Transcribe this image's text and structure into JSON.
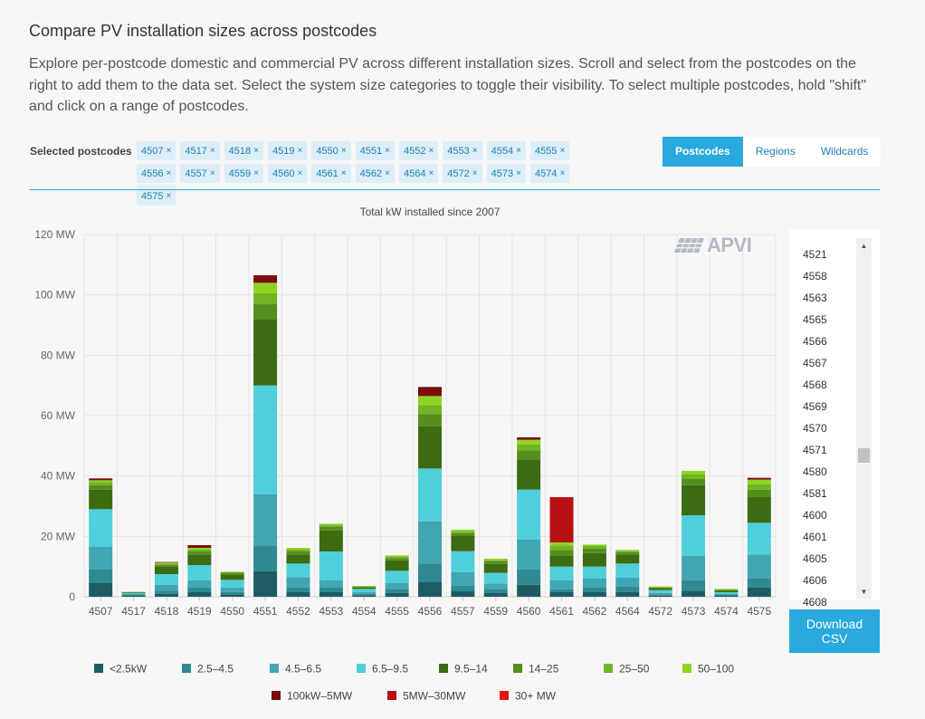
{
  "header": {
    "title": "Compare PV installation sizes across postcodes",
    "description": "Explore per-postcode domestic and commercial PV across different installation sizes. Scroll and select from the postcodes on the right to add them to the data set. Select the system size categories to toggle their visibility. To select multiple postcodes, hold \"shift\" and click on a range of postcodes."
  },
  "selected": {
    "label": "Selected postcodes",
    "remove_glyph": "×",
    "tags": [
      "4507",
      "4517",
      "4518",
      "4519",
      "4550",
      "4551",
      "4552",
      "4553",
      "4554",
      "4555",
      "4556",
      "4557",
      "4559",
      "4560",
      "4561",
      "4562",
      "4564",
      "4572",
      "4573",
      "4574",
      "4575"
    ]
  },
  "tabs": [
    {
      "label": "Postcodes",
      "active": true
    },
    {
      "label": "Regions",
      "active": false
    },
    {
      "label": "Wildcards",
      "active": false
    }
  ],
  "postcode_list": [
    "4521",
    "4558",
    "4563",
    "4565",
    "4566",
    "4567",
    "4568",
    "4569",
    "4570",
    "4571",
    "4580",
    "4581",
    "4600",
    "4601",
    "4605",
    "4606",
    "4608"
  ],
  "download_button": {
    "line1": "Download",
    "line2": "CSV"
  },
  "logo": {
    "text": "APVI",
    "color": "#b4bac4"
  },
  "icons": {
    "scroll_up": "▲",
    "scroll_down": "▼"
  },
  "chart_data": {
    "type": "bar",
    "stacked": true,
    "title": "Total kW installed since 2007",
    "xlabel": "",
    "ylabel": "",
    "ylim": [
      0,
      120
    ],
    "yticks": [
      0,
      20,
      40,
      60,
      80,
      100,
      120
    ],
    "ytick_labels": [
      "0",
      "20 MW",
      "40 MW",
      "60 MW",
      "80 MW",
      "100 MW",
      "120 MW"
    ],
    "grid": true,
    "legend_position": "bottom",
    "categories": [
      "4507",
      "4517",
      "4518",
      "4519",
      "4550",
      "4551",
      "4552",
      "4553",
      "4554",
      "4555",
      "4556",
      "4557",
      "4559",
      "4560",
      "4561",
      "4562",
      "4564",
      "4572",
      "4573",
      "4574",
      "4575"
    ],
    "series": [
      {
        "name": "<2.5kW",
        "color": "#1d5c63",
        "values": [
          4.5,
          0.3,
          1.0,
          1.5,
          0.8,
          8.5,
          1.5,
          1.5,
          0.5,
          1.3,
          5.0,
          1.8,
          1.2,
          4.0,
          1.5,
          1.5,
          1.5,
          0.4,
          2.0,
          0.3,
          3.0
        ]
      },
      {
        "name": "2.5–4.5",
        "color": "#2f8a92",
        "values": [
          4.5,
          0.3,
          1.0,
          1.5,
          0.8,
          8.5,
          1.5,
          1.5,
          0.5,
          1.3,
          6.0,
          1.8,
          1.2,
          5.0,
          1.0,
          1.5,
          1.8,
          0.4,
          3.5,
          0.3,
          3.0
        ]
      },
      {
        "name": "4.5–6.5",
        "color": "#41a6b1",
        "values": [
          7.5,
          0.3,
          2.0,
          2.5,
          1.4,
          17.0,
          3.5,
          2.5,
          0.6,
          2.0,
          14.0,
          4.5,
          2.0,
          10.0,
          3.0,
          3.0,
          3.0,
          0.5,
          8.0,
          0.4,
          8.0
        ]
      },
      {
        "name": "6.5–9.5",
        "color": "#4ecfdb",
        "values": [
          12.5,
          0.3,
          3.5,
          5.0,
          2.6,
          36.0,
          4.5,
          9.5,
          1.0,
          4.0,
          17.5,
          7.0,
          3.5,
          16.5,
          4.5,
          4.0,
          4.7,
          0.9,
          13.5,
          0.5,
          10.5
        ]
      },
      {
        "name": "9.5–14",
        "color": "#3d6b12",
        "values": [
          6.5,
          0.2,
          2.5,
          3.5,
          1.8,
          22.0,
          3.0,
          7.0,
          0.5,
          3.5,
          14.0,
          5.0,
          3.0,
          10.0,
          3.5,
          4.5,
          3.0,
          0.5,
          10.0,
          0.5,
          8.5
        ]
      },
      {
        "name": "14–25",
        "color": "#558e1d",
        "values": [
          1.5,
          0.1,
          0.6,
          1.0,
          0.4,
          5.0,
          1.0,
          1.2,
          0.2,
          0.7,
          4.0,
          1.0,
          0.8,
          3.0,
          2.0,
          1.5,
          0.8,
          0.3,
          2.0,
          0.3,
          2.5
        ]
      },
      {
        "name": "25–50",
        "color": "#6fb524",
        "values": [
          1.0,
          0.1,
          0.4,
          0.6,
          0.3,
          3.5,
          0.7,
          0.6,
          0.2,
          0.5,
          3.0,
          0.6,
          0.5,
          2.0,
          1.5,
          0.8,
          0.4,
          0.2,
          1.5,
          0.2,
          1.8
        ]
      },
      {
        "name": "50–100",
        "color": "#8ed41f",
        "values": [
          0.6,
          0.0,
          0.3,
          0.6,
          0.2,
          3.5,
          0.5,
          0.4,
          0.1,
          0.4,
          3.0,
          0.5,
          0.4,
          1.5,
          1.0,
          0.5,
          0.3,
          0.2,
          1.2,
          0.1,
          1.5
        ]
      },
      {
        "name": "100kW–5MW",
        "color": "#7b0d0d",
        "values": [
          0.6,
          0.0,
          0.2,
          0.9,
          0.0,
          2.5,
          0.0,
          0.0,
          0.0,
          0.0,
          3.0,
          0.0,
          0.0,
          0.8,
          0.0,
          0.0,
          0.0,
          0.0,
          0.0,
          0.0,
          0.6
        ]
      },
      {
        "name": "5MW–30MW",
        "color": "#b81010",
        "values": [
          0,
          0,
          0,
          0,
          0,
          0,
          0,
          0,
          0,
          0,
          0,
          0,
          0,
          0,
          15.0,
          0,
          0,
          0,
          0,
          0,
          0
        ]
      },
      {
        "name": "30+ MW",
        "color": "#e81414",
        "values": [
          0,
          0,
          0,
          0,
          0,
          0,
          0,
          0,
          0,
          0,
          0,
          0,
          0,
          0,
          0,
          0,
          0,
          0,
          0,
          0,
          0
        ]
      }
    ]
  }
}
